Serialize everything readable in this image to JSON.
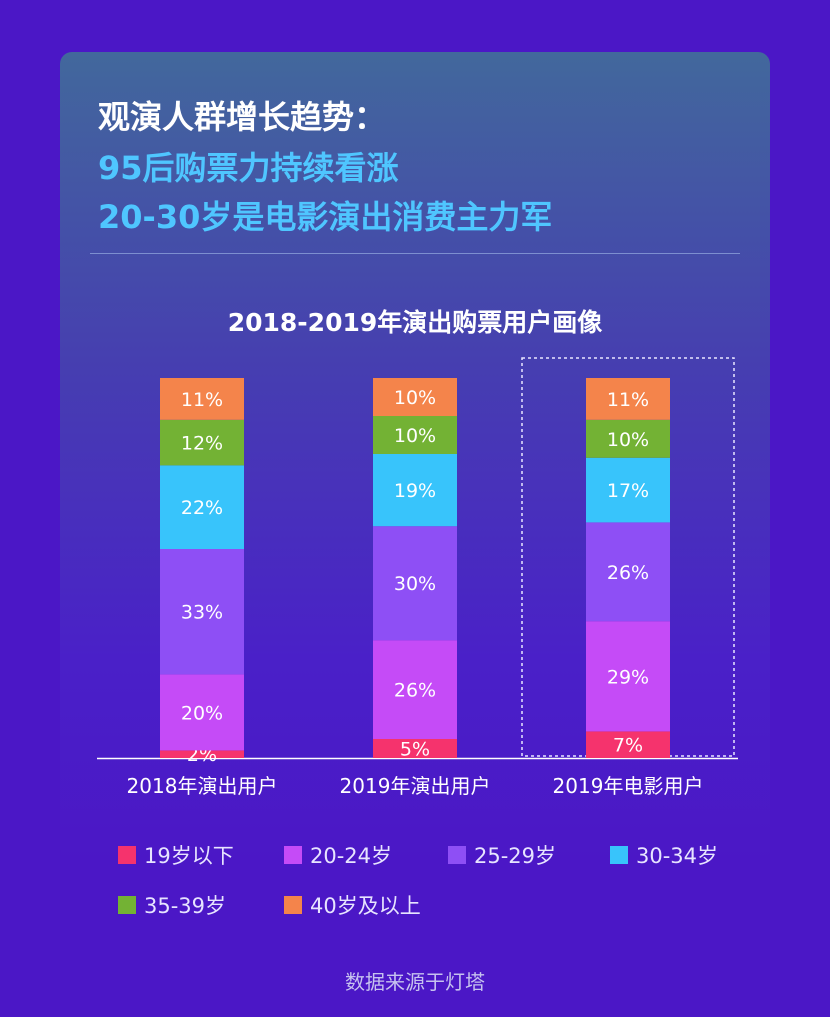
{
  "header": {
    "line1": "观演人群增长趋势：",
    "line2": "95后购票力持续看涨",
    "line3": "20-30岁是电影演出消费主力军"
  },
  "chart_data": {
    "type": "bar",
    "stacked": true,
    "title": "2018-2019年演出购票用户画像",
    "categories": [
      "2018年演出用户",
      "2019年演出用户",
      "2019年电影用户"
    ],
    "series": [
      {
        "name": "19岁以下",
        "color": "#f5336d",
        "values": [
          2,
          5,
          7
        ],
        "labels": [
          "2%",
          "5%",
          "7%"
        ]
      },
      {
        "name": "20-24岁",
        "color": "#c54bf7",
        "values": [
          20,
          26,
          29
        ],
        "labels": [
          "20%",
          "26%",
          "29%"
        ]
      },
      {
        "name": "25-29岁",
        "color": "#8e4ff5",
        "values": [
          33,
          30,
          26
        ],
        "labels": [
          "33%",
          "30%",
          "26%"
        ]
      },
      {
        "name": "30-34岁",
        "color": "#38c4fb",
        "values": [
          22,
          19,
          17
        ],
        "labels": [
          "22%",
          "19%",
          "17%"
        ]
      },
      {
        "name": "35-39岁",
        "color": "#73b234",
        "values": [
          12,
          10,
          10
        ],
        "labels": [
          "12%",
          "10%",
          "10%"
        ]
      },
      {
        "name": "40岁及以上",
        "color": "#f4844b",
        "values": [
          11,
          10,
          11
        ],
        "labels": [
          "11%",
          "10%",
          "11%"
        ]
      }
    ],
    "highlighted_category": "2019年电影用户",
    "legend_position": "bottom",
    "grid": false
  },
  "footer": {
    "source": "数据来源于灯塔"
  }
}
